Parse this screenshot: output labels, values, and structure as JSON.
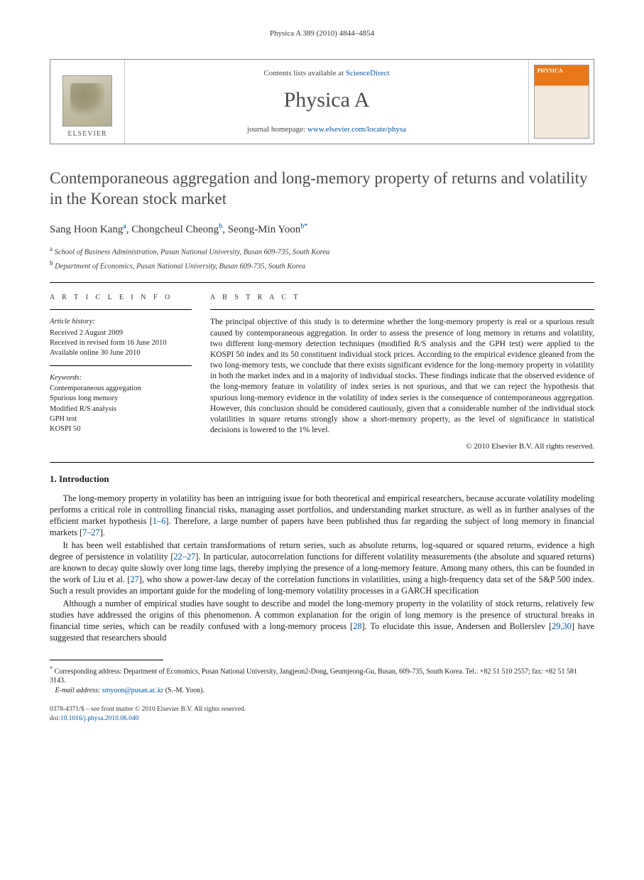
{
  "running_head": "Physica A 389 (2010) 4844–4854",
  "masthead": {
    "publisher": "ELSEVIER",
    "contents_prefix": "Contents lists available at ",
    "contents_link": "ScienceDirect",
    "journal": "Physica A",
    "homepage_prefix": "journal homepage: ",
    "homepage_link": "www.elsevier.com/locate/physa",
    "cover_label": "PHYSICA"
  },
  "title": "Contemporaneous aggregation and long-memory property of returns and volatility in the Korean stock market",
  "authors_line": {
    "a1": "Sang Hoon Kang",
    "a1_aff": "a",
    "a2": "Chongcheul Cheong",
    "a2_aff": "b",
    "a3": "Seong-Min Yoon",
    "a3_aff": "b",
    "a3_corr": "*"
  },
  "affiliations": {
    "a": "School of Business Administration, Pusan National University, Busan 609-735, South Korea",
    "b": "Department of Economics, Pusan National University, Busan 609-735, South Korea"
  },
  "article_info": {
    "head": "A R T I C L E   I N F O",
    "history_head": "Article history:",
    "h1": "Received 2 August 2009",
    "h2": "Received in revised form 16 June 2010",
    "h3": "Available online 30 June 2010",
    "keywords_head": "Keywords:",
    "k1": "Contemporaneous aggregation",
    "k2": "Spurious long memory",
    "k3": "Modified R/S analysis",
    "k4": "GPH test",
    "k5": "KOSPI 50"
  },
  "abstract": {
    "head": "A B S T R A C T",
    "text": "The principal objective of this study is to determine whether the long-memory property is real or a spurious result caused by contemporaneous aggregation. In order to assess the presence of long memory in returns and volatility, two different long-memory detection techniques (modified R/S analysis and the GPH test) were applied to the KOSPI 50 index and its 50 constituent individual stock prices. According to the empirical evidence gleaned from the two long-memory tests, we conclude that there exists significant evidence for the long-memory property in volatility in both the market index and in a majority of individual stocks. These findings indicate that the observed evidence of the long-memory feature in volatility of index series is not spurious, and that we can reject the hypothesis that spurious long-memory evidence in the volatility of index series is the consequence of contemporaneous aggregation. However, this conclusion should be considered cautiously, given that a considerable number of the individual stock volatilities in square returns strongly show a short-memory property, as the level of significance in statistical decisions is lowered to the 1% level.",
    "copyright": "© 2010 Elsevier B.V. All rights reserved."
  },
  "section1": {
    "title": "1. Introduction",
    "p1_a": "The long-memory property in volatility has been an intriguing issue for both theoretical and empirical researchers, because accurate volatility modeling performs a critical role in controlling financial risks, managing asset portfolios, and understanding market structure, as well as in further analyses of the efficient market hypothesis [",
    "p1_ref1": "1–6",
    "p1_b": "]. Therefore, a large number of papers have been published thus far regarding the subject of long memory in financial markets [",
    "p1_ref2": "7–27",
    "p1_c": "].",
    "p2_a": "It has been well established that certain transformations of return series, such as absolute returns, log-squared or squared returns, evidence a high degree of persistence in volatility [",
    "p2_ref1": "22–27",
    "p2_b": "]. In particular, autocorrelation functions for different volatility measurements (the absolute and squared returns) are known to decay quite slowly over long time lags, thereby implying the presence of a long-memory feature. Among many others, this can be founded in the work of Liu et al. [",
    "p2_ref2": "27",
    "p2_c": "], who show a power-law decay of the correlation functions in volatilities, using a high-frequency data set of the S&P 500 index. Such a result provides an important guide for the modeling of long-memory volatility processes in a GARCH specification",
    "p3_a": "Although a number of empirical studies have sought to describe and model the long-memory property in the volatility of stock returns, relatively few studies have addressed the origins of this phenomenon. A common explanation for the origin of long memory is the presence of structural breaks in financial time series, which can be readily confused with a long-memory process [",
    "p3_ref1": "28",
    "p3_b": "]. To elucidate this issue, Andersen and Bollerslev [",
    "p3_ref2": "29,30",
    "p3_c": "] have suggested that researchers should"
  },
  "footnote": {
    "star": "*",
    "corr": "Corresponding address: Department of Economics, Pusan National University, Jangjeon2-Dong, Geumjeong-Gu, Busan, 609-735, South Korea. Tel.: +82 51 510 2557; fax: +82 51 581 3143.",
    "email_label": "E-mail address:",
    "email": "smyoon@pusan.ac.kr",
    "email_who": "(S.-M. Yoon)."
  },
  "footer": {
    "line1": "0378-4371/$ – see front matter © 2010 Elsevier B.V. All rights reserved.",
    "doi_label": "doi:",
    "doi": "10.1016/j.physa.2010.06.040"
  },
  "colors": {
    "link": "#0056a3",
    "text": "#1a1a1a",
    "title_gray": "#4a4a4a",
    "cover_orange": "#e87817"
  }
}
